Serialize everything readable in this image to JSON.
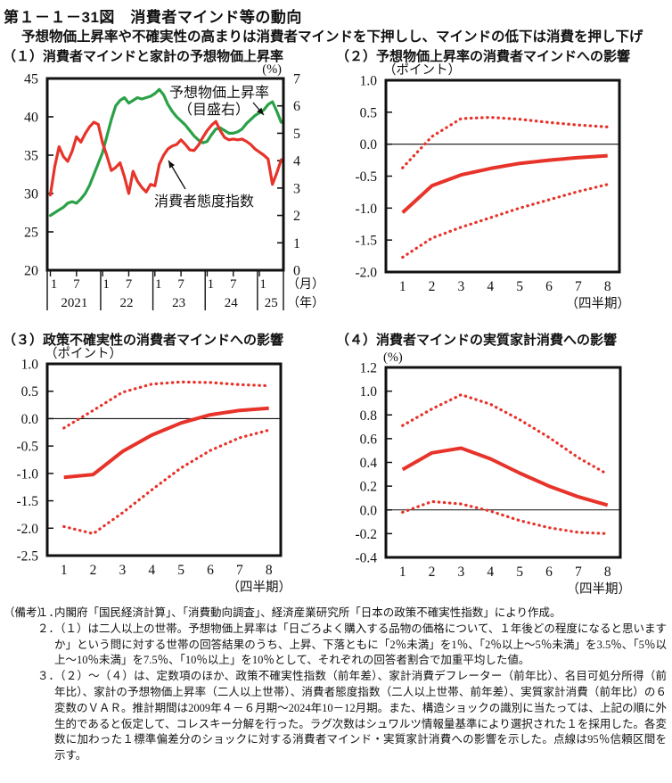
{
  "figure": {
    "title": "第１－１－31図　消費者マインド等の動向",
    "subtitle": "予想物価上昇率や不確実性の高まりは消費者マインドを下押しし、マインドの低下は消費を押し下げ"
  },
  "colors": {
    "red": "#e7332a",
    "green": "#2aa147",
    "axis": "#111111"
  },
  "chart_data": [
    {
      "id": "panel1",
      "type": "line",
      "title": "（１）消費者マインドと家計の予想物価上昇率",
      "left_axis": {
        "min": 20,
        "max": 45,
        "ticks": [
          "45",
          "40",
          "35",
          "30",
          "25",
          "20"
        ]
      },
      "right_axis": {
        "min": 0,
        "max": 7,
        "unit": "(%)",
        "ticks": [
          "7",
          "6",
          "5",
          "4",
          "3",
          "2",
          "1",
          "0"
        ]
      },
      "x_axis": {
        "month_ticks": [
          {
            "label": "1",
            "m": 0
          },
          {
            "label": "7",
            "m": 6
          },
          {
            "label": "1",
            "m": 12
          },
          {
            "label": "7",
            "m": 18
          },
          {
            "label": "1",
            "m": 24
          },
          {
            "label": "7",
            "m": 30
          },
          {
            "label": "1",
            "m": 36
          },
          {
            "label": "7",
            "m": 42
          },
          {
            "label": "1",
            "m": 48
          }
        ],
        "years": [
          "2021",
          "22",
          "23",
          "24",
          "25"
        ],
        "month_unit": "（月）",
        "year_unit": "（年）"
      },
      "labels": {
        "green_line1": "予想物価上昇率",
        "green_line2": "（目盛右）",
        "red_label": "消費者態度指数"
      },
      "series": [
        {
          "name": "予想物価上昇率（目盛右）",
          "axis": "right",
          "color": "#2aa147",
          "data_name": "expected-inflation-line",
          "values": [
            2.0,
            2.1,
            2.2,
            2.3,
            2.45,
            2.5,
            2.45,
            2.6,
            2.8,
            3.1,
            3.5,
            3.9,
            4.3,
            4.9,
            5.5,
            6.0,
            6.2,
            6.3,
            6.1,
            6.2,
            6.3,
            6.25,
            6.3,
            6.35,
            6.45,
            6.6,
            6.4,
            6.05,
            5.8,
            5.6,
            5.45,
            5.3,
            5.1,
            4.9,
            4.75,
            4.65,
            4.7,
            4.95,
            5.15,
            5.2,
            5.1,
            5.0,
            5.0,
            5.05,
            5.15,
            5.35,
            5.5,
            5.65,
            5.75,
            5.85,
            6.05,
            6.15,
            5.8,
            5.4
          ]
        },
        {
          "name": "消費者態度指数",
          "axis": "left",
          "color": "#e7332a",
          "data_name": "consumer-confidence-line",
          "values": [
            29.8,
            33.5,
            36.1,
            34.8,
            34.2,
            35.5,
            37.4,
            36.7,
            37.8,
            38.7,
            39.3,
            39.0,
            36.6,
            34.9,
            33.0,
            33.4,
            34.0,
            32.2,
            30.0,
            32.9,
            31.6,
            30.8,
            30.2,
            31.2,
            31.0,
            33.8,
            35.0,
            35.8,
            36.2,
            36.4,
            37.0,
            36.4,
            35.7,
            35.6,
            36.3,
            37.3,
            38.2,
            38.9,
            39.4,
            38.2,
            37.3,
            37.0,
            37.1,
            37.0,
            37.1,
            36.8,
            36.4,
            35.8,
            35.4,
            35.0,
            34.5,
            31.2,
            32.7,
            34.4
          ]
        }
      ]
    },
    {
      "id": "panel2",
      "type": "line",
      "title": "（２）予想物価上昇率の消費者マインドへの影響",
      "unit": "（ポイント）",
      "ylim": [
        -2.0,
        1.0
      ],
      "yticks": [
        "1.0",
        "0.5",
        "0.0",
        "-0.5",
        "-1.0",
        "-1.5",
        "-2.0"
      ],
      "x_labels": [
        "1",
        "2",
        "3",
        "4",
        "5",
        "6",
        "7",
        "8"
      ],
      "xlabel": "（四半期）",
      "color": "#e7332a",
      "series": {
        "solid": [
          -1.07,
          -0.65,
          -0.48,
          -0.38,
          -0.3,
          -0.25,
          -0.21,
          -0.18
        ],
        "upper_band": [
          -0.37,
          0.12,
          0.4,
          0.42,
          0.39,
          0.34,
          0.3,
          0.27
        ],
        "lower_band": [
          -1.77,
          -1.47,
          -1.3,
          -1.15,
          -1.0,
          -0.87,
          -0.74,
          -0.63
        ]
      }
    },
    {
      "id": "panel3",
      "type": "line",
      "title": "（３）政策不確実性の消費者マインドへの影響",
      "unit": "（ポイント）",
      "ylim": [
        -2.5,
        1.0
      ],
      "yticks": [
        "1.0",
        "0.5",
        "0.0",
        "-0.5",
        "-1.0",
        "-1.5",
        "-2.0",
        "-2.5"
      ],
      "x_labels": [
        "1",
        "2",
        "3",
        "4",
        "5",
        "6",
        "7",
        "8"
      ],
      "xlabel": "（四半期）",
      "color": "#e7332a",
      "series": {
        "solid": [
          -1.07,
          -1.02,
          -0.6,
          -0.3,
          -0.08,
          0.07,
          0.15,
          0.19
        ],
        "upper_band": [
          -0.17,
          0.15,
          0.48,
          0.63,
          0.67,
          0.66,
          0.62,
          0.6
        ],
        "lower_band": [
          -1.97,
          -2.1,
          -1.72,
          -1.3,
          -0.9,
          -0.58,
          -0.35,
          -0.21
        ]
      }
    },
    {
      "id": "panel4",
      "type": "line",
      "title": "（４）消費者マインドの実質家計消費への影響",
      "unit": "(%)",
      "ylim": [
        -0.4,
        1.2
      ],
      "yticks": [
        "1.2",
        "1.0",
        "0.8",
        "0.6",
        "0.4",
        "0.2",
        "0.0",
        "-0.2",
        "-0.4"
      ],
      "x_labels": [
        "1",
        "2",
        "3",
        "4",
        "5",
        "6",
        "7",
        "8"
      ],
      "xlabel": "（四半期）",
      "color": "#e7332a",
      "series": {
        "solid": [
          0.34,
          0.48,
          0.52,
          0.43,
          0.31,
          0.2,
          0.11,
          0.04
        ],
        "upper_band": [
          0.71,
          0.85,
          0.97,
          0.89,
          0.76,
          0.61,
          0.44,
          0.3
        ],
        "lower_band": [
          -0.02,
          0.07,
          0.05,
          -0.01,
          -0.09,
          -0.15,
          -0.19,
          -0.2
        ]
      }
    }
  ],
  "notes": {
    "label": "（備考）",
    "items": [
      {
        "no": "１．",
        "text": "内閣府「国民経済計算」、「消費動向調査」、経済産業研究所「日本の政策不確実性指数」により作成。"
      },
      {
        "no": "２．",
        "text": "（１）は二人以上の世帯。予想物価上昇率は「日ごろよく購入する品物の価格について、１年後どの程度になると思いますか」という問に対する世帯の回答結果のうち、上昇、下落ともに「2％未満」を1％、「2％以上～5％未満」を3.5％、「5％以上～10％未満」を7.5％、「10％以上」を10％として、それぞれの回答者割合で加重平均した値。"
      },
      {
        "no": "３．",
        "text": "（２）～（４）は、定数項のほか、政策不確実性指数（前年差）、家計消費デフレーター（前年比）、名目可処分所得（前年比）、家計の予想物価上昇率（二人以上世帯）、消費者態度指数（二人以上世帯、前年差）、実質家計消費（前年比）の６変数のＶＡＲ。推計期間は2009年４－６月期～2024年10－12月期。また、構造ショックの識別に当たっては、上記の順に外生的であると仮定して、コレスキー分解を行った。ラグ次数はシュワルツ情報量基準により選択された１を採用した。各変数に加わった１標準偏差分のショックに対する消費者マインド・実質家計消費への影響を示した。点線は95％信頼区間を示す。"
      }
    ]
  }
}
